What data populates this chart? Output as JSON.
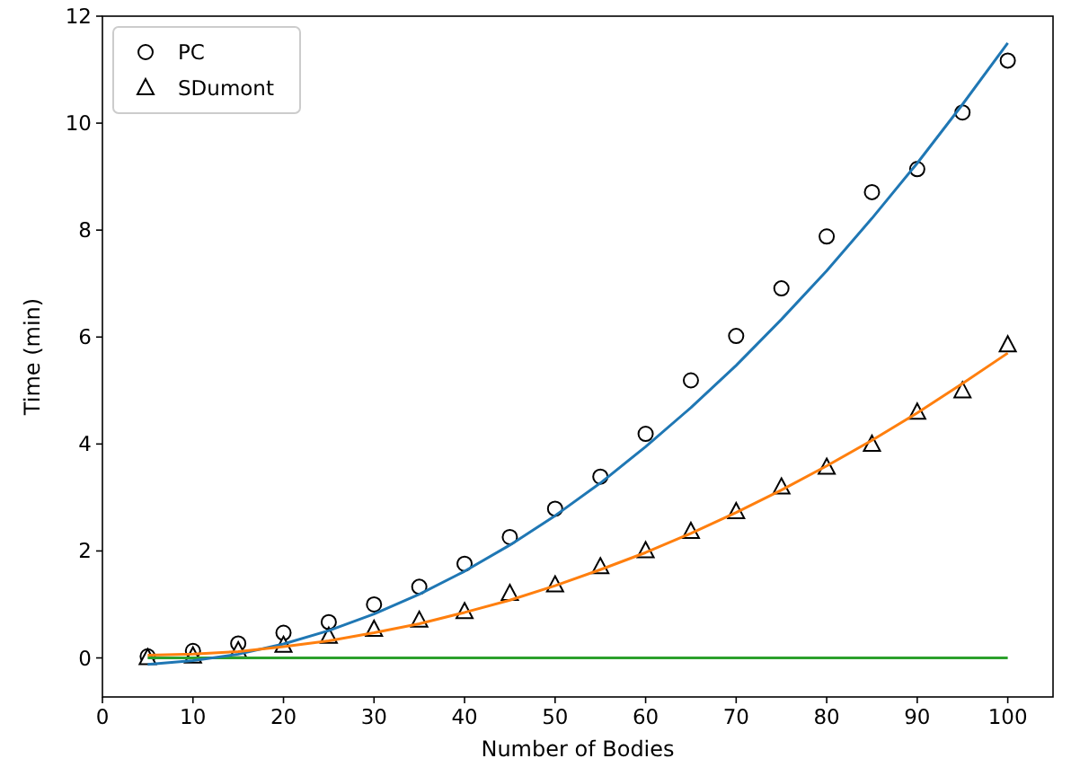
{
  "chart_data": {
    "type": "scatter",
    "xlabel": "Number of Bodies",
    "ylabel": "Time (min)",
    "x": [
      5,
      10,
      15,
      20,
      25,
      30,
      35,
      40,
      45,
      50,
      55,
      60,
      65,
      70,
      75,
      80,
      85,
      90,
      95,
      100
    ],
    "series": [
      {
        "name": "PC",
        "marker": "circle",
        "color": "#000000",
        "values": [
          0.03,
          0.13,
          0.27,
          0.47,
          0.67,
          1.0,
          1.33,
          1.76,
          2.26,
          2.79,
          3.39,
          4.19,
          5.19,
          6.02,
          6.91,
          7.88,
          8.71,
          9.14,
          10.2,
          11.17
        ]
      },
      {
        "name": "SDumont",
        "marker": "triangle",
        "color": "#000000",
        "values": [
          0.0,
          0.03,
          0.13,
          0.23,
          0.4,
          0.53,
          0.7,
          0.86,
          1.2,
          1.36,
          1.7,
          2.0,
          2.36,
          2.73,
          3.19,
          3.56,
          3.99,
          4.59,
          4.99,
          5.85
        ]
      },
      {
        "type": "line",
        "color": "#2ca02c",
        "values": [
          0,
          0,
          0,
          0,
          0,
          0,
          0,
          0,
          0,
          0,
          0,
          0,
          0,
          0,
          0,
          0,
          0,
          0,
          0,
          0
        ]
      },
      {
        "type": "line",
        "color": "#1f77b4",
        "values": [
          -0.12,
          -0.05,
          0.07,
          0.26,
          0.51,
          0.82,
          1.19,
          1.62,
          2.11,
          2.66,
          3.27,
          3.95,
          4.68,
          5.47,
          6.33,
          7.24,
          8.22,
          9.25,
          10.35,
          11.5
        ]
      },
      {
        "type": "line",
        "color": "#ff7f0e",
        "values": [
          0.05,
          0.07,
          0.12,
          0.21,
          0.32,
          0.47,
          0.64,
          0.85,
          1.08,
          1.35,
          1.65,
          1.97,
          2.33,
          2.72,
          3.14,
          3.59,
          4.07,
          4.58,
          5.13,
          5.7
        ]
      }
    ],
    "xlim": [
      0,
      105
    ],
    "ylim": [
      -0.73,
      12
    ],
    "xticks": [
      0,
      10,
      20,
      30,
      40,
      50,
      60,
      70,
      80,
      90,
      100
    ],
    "yticks": [
      0,
      2,
      4,
      6,
      8,
      10,
      12
    ],
    "legend": "top left",
    "grid": false
  }
}
